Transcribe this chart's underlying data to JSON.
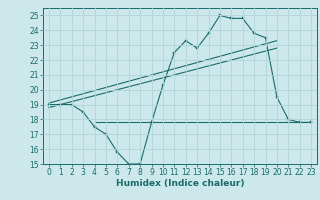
{
  "xlabel": "Humidex (Indice chaleur)",
  "xlim": [
    -0.5,
    23.5
  ],
  "ylim": [
    15,
    25.5
  ],
  "xticks": [
    0,
    1,
    2,
    3,
    4,
    5,
    6,
    7,
    8,
    9,
    10,
    11,
    12,
    13,
    14,
    15,
    16,
    17,
    18,
    19,
    20,
    21,
    22,
    23
  ],
  "yticks": [
    15,
    16,
    17,
    18,
    19,
    20,
    21,
    22,
    23,
    24,
    25
  ],
  "bg_color": "#cce8ea",
  "grid_color": "#b0d4d8",
  "line_color": "#1a6b6b",
  "curve_x": [
    0,
    1,
    2,
    3,
    4,
    5,
    6,
    7,
    8,
    9,
    10,
    11,
    12,
    13,
    14,
    15,
    16,
    17,
    18,
    19,
    20,
    21,
    22,
    23
  ],
  "curve_y": [
    19.0,
    19.0,
    19.0,
    18.5,
    17.5,
    17.0,
    15.8,
    15.0,
    15.0,
    17.8,
    20.3,
    22.5,
    23.3,
    22.8,
    23.8,
    25.0,
    24.8,
    24.8,
    23.8,
    23.5,
    19.5,
    18.0,
    17.8,
    17.8
  ],
  "line1_x": [
    0,
    20
  ],
  "line1_y": [
    19.1,
    23.3
  ],
  "line2_x": [
    0,
    20
  ],
  "line2_y": [
    18.8,
    22.8
  ],
  "line3_x": [
    4,
    23
  ],
  "line3_y": [
    17.8,
    17.8
  ],
  "tick_fontsize": 5.5,
  "label_fontsize": 6.5
}
